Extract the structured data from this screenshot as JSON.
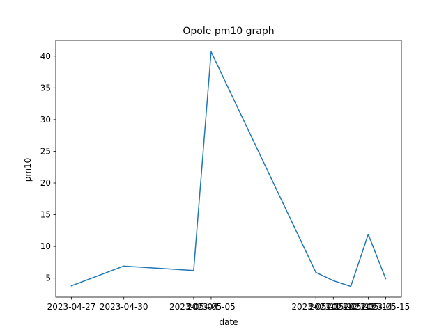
{
  "chart_data": {
    "type": "line",
    "title": "Opole pm10 graph",
    "xlabel": "date",
    "ylabel": "pm10",
    "x": [
      "2023-04-27",
      "2023-04-30",
      "2023-05-04",
      "2023-05-05",
      "2023-05-11",
      "2023-05-12",
      "2023-05-13",
      "2023-05-14",
      "2023-05-15"
    ],
    "series": [
      {
        "values": [
          3.8,
          6.9,
          6.2,
          40.7,
          5.9,
          4.6,
          3.7,
          11.9,
          4.9
        ]
      }
    ],
    "yticks": [
      5,
      10,
      15,
      20,
      25,
      30,
      35,
      40
    ],
    "ylim": [
      2.0,
      42.5
    ],
    "grid": false,
    "line_color": "#1f77b4"
  }
}
